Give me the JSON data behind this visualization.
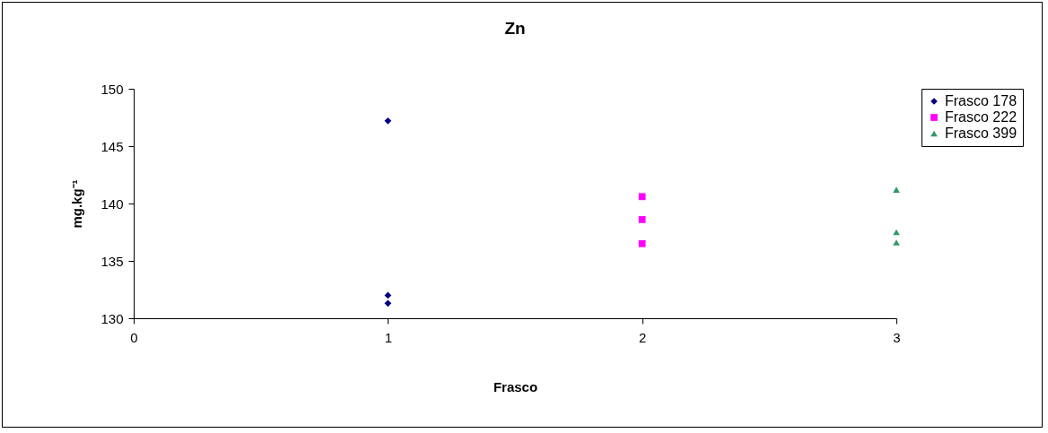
{
  "chart_data": {
    "type": "scatter",
    "title": "Zn",
    "xlabel": "Frasco",
    "ylabel": "mg.kg⁻¹",
    "xlim": [
      0,
      3
    ],
    "xticks": [
      0,
      1,
      2,
      3
    ],
    "ylim": [
      130,
      150
    ],
    "yticks": [
      130,
      135,
      140,
      145,
      150
    ],
    "grid": false,
    "legend": "right",
    "series": [
      {
        "name": "Frasco 178",
        "color": "#000080",
        "marker": "diamond",
        "x": [
          1,
          1,
          1
        ],
        "values": [
          147.2,
          132.0,
          131.3
        ]
      },
      {
        "name": "Frasco 222",
        "color": "#ff00ff",
        "marker": "square",
        "x": [
          2,
          2,
          2
        ],
        "values": [
          140.6,
          138.6,
          136.5
        ]
      },
      {
        "name": "Frasco 399",
        "color": "#339966",
        "marker": "triangle",
        "x": [
          3,
          3,
          3
        ],
        "values": [
          141.2,
          137.5,
          136.6
        ]
      }
    ]
  }
}
